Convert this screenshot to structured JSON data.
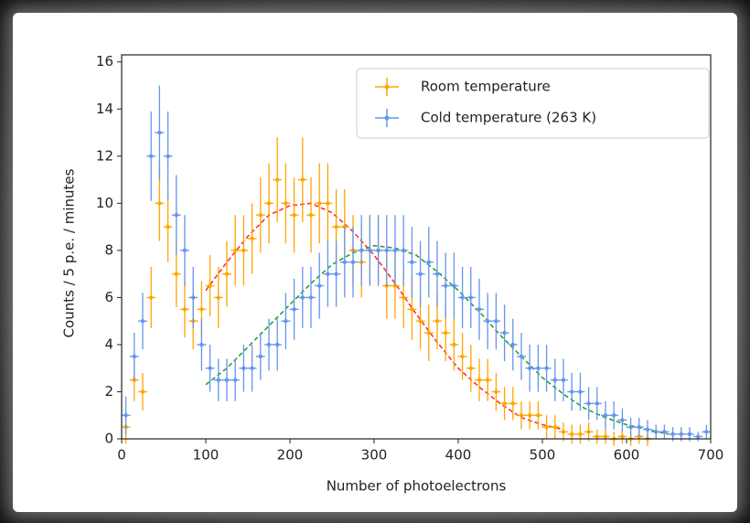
{
  "chart_data": {
    "type": "errorbar",
    "xlabel": "Number of photoelectrons",
    "ylabel": "Counts / 5 p.e. / minutes",
    "xlim": [
      0,
      700
    ],
    "ylim": [
      0,
      16.3
    ],
    "xticks": [
      0,
      100,
      200,
      300,
      400,
      500,
      600,
      700
    ],
    "yticks": [
      0,
      2,
      4,
      6,
      8,
      10,
      12,
      14,
      16
    ],
    "legend": "upper right",
    "x": [
      5,
      15,
      25,
      35,
      45,
      55,
      65,
      75,
      85,
      95,
      105,
      115,
      125,
      135,
      145,
      155,
      165,
      175,
      185,
      195,
      205,
      215,
      225,
      235,
      245,
      255,
      265,
      275,
      285,
      295,
      305,
      315,
      325,
      335,
      345,
      355,
      365,
      375,
      385,
      395,
      405,
      415,
      425,
      435,
      445,
      455,
      465,
      475,
      485,
      495,
      505,
      515,
      525,
      535,
      545,
      555,
      565,
      575,
      585,
      595,
      605,
      615,
      625,
      635,
      645,
      655,
      665,
      675,
      685,
      695
    ],
    "series": [
      {
        "name": "Room temperature",
        "color": "#ffa500",
        "values": [
          0.5,
          2.5,
          2,
          6,
          10,
          9,
          7,
          5.5,
          5,
          5.5,
          6.5,
          6,
          7,
          8,
          8,
          8.5,
          9.5,
          10,
          11,
          10,
          9.5,
          11,
          9.5,
          10,
          10,
          9,
          9,
          8,
          7.5,
          8,
          8,
          6.5,
          6.5,
          6,
          5.5,
          5,
          4.5,
          5,
          4.5,
          4,
          3.5,
          3,
          2.5,
          2.5,
          2,
          1.5,
          1.5,
          1,
          1,
          1,
          0.5,
          0.5,
          0.3,
          0.2,
          0.2,
          0.3,
          0.1,
          0.1,
          0,
          0.1,
          0,
          0.1,
          0,
          null,
          null,
          null,
          null,
          null,
          null,
          null
        ],
        "errors": [
          0.7,
          0.9,
          0.8,
          1.3,
          1.6,
          1.5,
          1.4,
          1.2,
          1.2,
          1.2,
          1.3,
          1.3,
          1.4,
          1.5,
          1.5,
          1.5,
          1.6,
          1.7,
          1.8,
          1.7,
          1.6,
          1.8,
          1.6,
          1.7,
          1.7,
          1.6,
          1.6,
          1.5,
          1.5,
          1.5,
          1.5,
          1.4,
          1.4,
          1.3,
          1.3,
          1.2,
          1.2,
          1.2,
          1.2,
          1.1,
          1.0,
          1.0,
          0.9,
          0.9,
          0.8,
          0.7,
          0.7,
          0.6,
          0.6,
          0.6,
          0.5,
          0.5,
          0.4,
          0.4,
          0.4,
          0.4,
          0.3,
          0.3,
          0.3,
          0.3,
          0.3,
          0.3,
          0.3,
          null,
          null,
          null,
          null,
          null,
          null,
          null
        ]
      },
      {
        "name": "Cold temperature (263 K)",
        "color": "#6495ed",
        "values": [
          1,
          3.5,
          5,
          12,
          13,
          12,
          9.5,
          8,
          6,
          4,
          3,
          2.5,
          2.5,
          2.5,
          3,
          3,
          3.5,
          4,
          4,
          5,
          5.5,
          6,
          6,
          6.5,
          7,
          7,
          7.5,
          7.5,
          8,
          8,
          8,
          8,
          8,
          8,
          7.5,
          7,
          7.5,
          7,
          6.5,
          6.5,
          6,
          6,
          5.5,
          5,
          5,
          4.5,
          4,
          3.5,
          3,
          3,
          3,
          2.5,
          2.5,
          2,
          2,
          1.5,
          1.5,
          1,
          1,
          0.8,
          0.5,
          0.5,
          0.4,
          0.3,
          0.3,
          0.2,
          0.2,
          0.2,
          0.1,
          0.3
        ],
        "errors": [
          0.8,
          1.0,
          1.2,
          1.9,
          2.0,
          1.9,
          1.7,
          1.5,
          1.3,
          1.1,
          1.0,
          0.9,
          0.9,
          0.9,
          1.0,
          1.0,
          1.0,
          1.1,
          1.1,
          1.2,
          1.3,
          1.3,
          1.3,
          1.4,
          1.4,
          1.4,
          1.5,
          1.5,
          1.5,
          1.5,
          1.5,
          1.5,
          1.5,
          1.5,
          1.5,
          1.4,
          1.5,
          1.4,
          1.4,
          1.4,
          1.3,
          1.3,
          1.3,
          1.2,
          1.2,
          1.2,
          1.1,
          1.0,
          1.0,
          1.0,
          1.0,
          0.9,
          0.9,
          0.8,
          0.8,
          0.7,
          0.7,
          0.6,
          0.6,
          0.5,
          0.4,
          0.4,
          0.4,
          0.3,
          0.3,
          0.3,
          0.3,
          0.3,
          0.2,
          0.3
        ]
      }
    ],
    "fits": [
      {
        "color": "#ff3030",
        "x": [
          100,
          125,
          150,
          175,
          200,
          225,
          250,
          275,
          300,
          325,
          350,
          375,
          400,
          425,
          450,
          475,
          500,
          525
        ],
        "values": [
          6.3,
          7.5,
          8.6,
          9.5,
          9.9,
          10.0,
          9.6,
          8.8,
          7.8,
          6.6,
          5.3,
          4.1,
          3.0,
          2.2,
          1.5,
          0.9,
          0.6,
          0.4
        ]
      },
      {
        "color": "#2ca02c",
        "x": [
          100,
          125,
          150,
          175,
          200,
          225,
          250,
          275,
          300,
          325,
          350,
          375,
          400,
          425,
          450,
          475,
          500,
          525,
          550,
          575,
          600,
          625,
          650
        ],
        "values": [
          2.3,
          3.0,
          3.9,
          4.8,
          5.7,
          6.6,
          7.4,
          7.9,
          8.2,
          8.1,
          7.8,
          7.1,
          6.3,
          5.4,
          4.4,
          3.5,
          2.6,
          1.9,
          1.3,
          0.9,
          0.6,
          0.4,
          0.2
        ]
      }
    ]
  }
}
